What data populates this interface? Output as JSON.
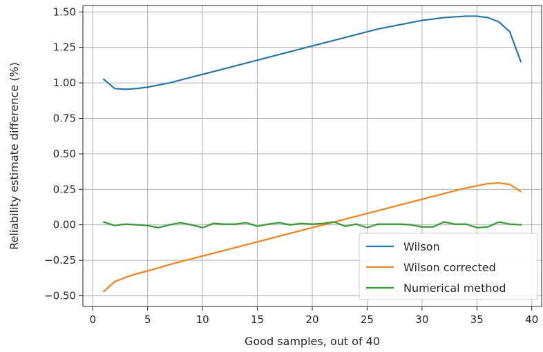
{
  "chart_data": {
    "type": "line",
    "xlabel": "Good samples, out of 40",
    "ylabel": "Reliability estimate difference (%)",
    "xlim": [
      -0.9,
      40.9
    ],
    "ylim": [
      -0.575,
      1.545
    ],
    "xticks": [
      0,
      5,
      10,
      15,
      20,
      25,
      30,
      35,
      40
    ],
    "yticks": [
      -0.5,
      -0.25,
      0.0,
      0.25,
      0.5,
      0.75,
      1.0,
      1.25,
      1.5
    ],
    "ytick_labels": [
      "−0.50",
      "−0.25",
      "0.00",
      "0.25",
      "0.50",
      "0.75",
      "1.00",
      "1.25",
      "1.50"
    ],
    "grid": true,
    "legend_position": "lower-right",
    "x": [
      1,
      2,
      3,
      4,
      5,
      6,
      7,
      8,
      9,
      10,
      11,
      12,
      13,
      14,
      15,
      16,
      17,
      18,
      19,
      20,
      21,
      22,
      23,
      24,
      25,
      26,
      27,
      28,
      29,
      30,
      31,
      32,
      33,
      34,
      35,
      36,
      37,
      38,
      39
    ],
    "series": [
      {
        "name": "Wilson",
        "color": "#1f77b4",
        "values": [
          1.025,
          0.96,
          0.955,
          0.96,
          0.97,
          0.985,
          1.0,
          1.02,
          1.04,
          1.06,
          1.08,
          1.1,
          1.12,
          1.14,
          1.16,
          1.18,
          1.2,
          1.22,
          1.24,
          1.26,
          1.28,
          1.3,
          1.32,
          1.34,
          1.36,
          1.38,
          1.395,
          1.41,
          1.425,
          1.44,
          1.45,
          1.46,
          1.465,
          1.47,
          1.47,
          1.46,
          1.43,
          1.36,
          1.15
        ]
      },
      {
        "name": "Wilson corrected",
        "color": "#ff7f0e",
        "values": [
          -0.47,
          -0.4,
          -0.37,
          -0.345,
          -0.325,
          -0.303,
          -0.28,
          -0.26,
          -0.24,
          -0.22,
          -0.2,
          -0.18,
          -0.16,
          -0.14,
          -0.12,
          -0.1,
          -0.08,
          -0.06,
          -0.04,
          -0.02,
          0.0,
          0.02,
          0.04,
          0.06,
          0.08,
          0.1,
          0.12,
          0.14,
          0.16,
          0.18,
          0.2,
          0.22,
          0.24,
          0.26,
          0.275,
          0.29,
          0.295,
          0.285,
          0.235
        ]
      },
      {
        "name": "Numerical method",
        "color": "#2ca02c",
        "values": [
          0.02,
          -0.005,
          0.005,
          0.0,
          -0.005,
          -0.02,
          0.0,
          0.015,
          0.0,
          -0.02,
          0.01,
          0.005,
          0.005,
          0.015,
          -0.01,
          0.005,
          0.015,
          0.0,
          0.01,
          0.005,
          0.01,
          0.02,
          -0.01,
          0.005,
          -0.02,
          0.005,
          0.005,
          0.005,
          0.0,
          -0.015,
          -0.015,
          0.02,
          0.005,
          0.005,
          -0.02,
          -0.015,
          0.02,
          0.005,
          0.0
        ]
      }
    ]
  }
}
